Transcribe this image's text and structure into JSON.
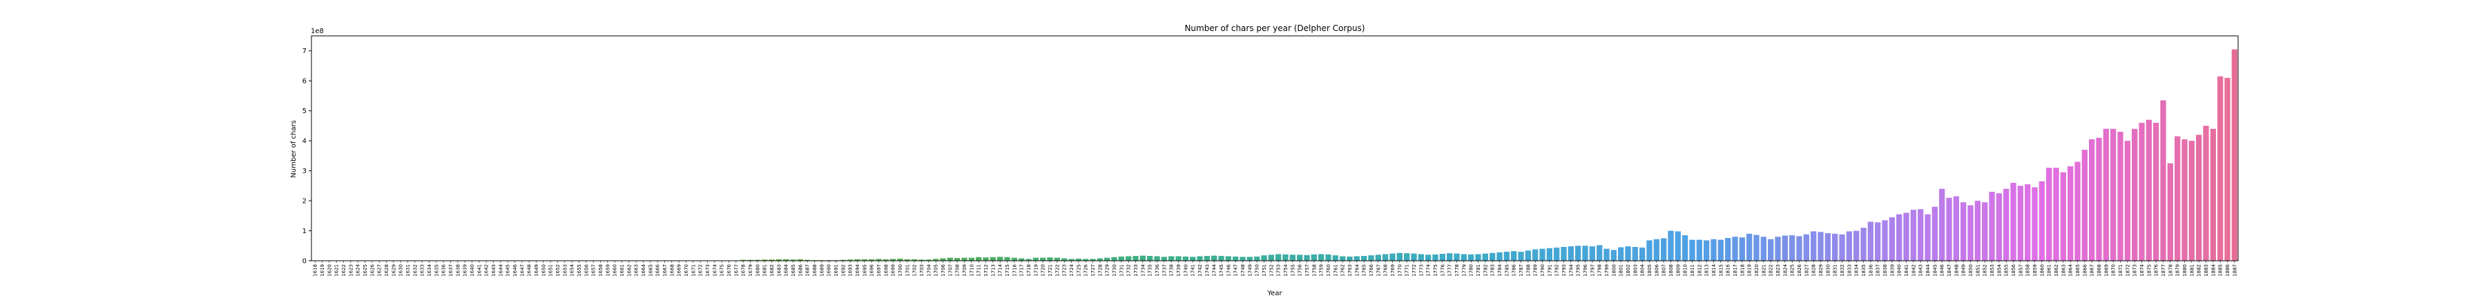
{
  "chart_data": {
    "type": "bar",
    "title": "Number of chars per year (Delpher Corpus)",
    "xlabel": "Year",
    "ylabel": "Number of chars",
    "offset_text": "1e8",
    "ylim": [
      0,
      7.5
    ],
    "yticks": [
      0,
      1,
      2,
      3,
      4,
      5,
      6,
      7
    ],
    "x_start": 1618,
    "x_end": 1876,
    "values": [
      0.002,
      0.002,
      0.002,
      0.002,
      0.002,
      0.002,
      0.002,
      0.002,
      0.002,
      0.002,
      0.002,
      0.002,
      0.002,
      0.002,
      0.002,
      0.002,
      0.002,
      0.002,
      0.002,
      0.002,
      0.002,
      0.002,
      0.002,
      0.002,
      0.002,
      0.002,
      0.002,
      0.002,
      0.002,
      0.002,
      0.002,
      0.002,
      0.002,
      0.002,
      0.002,
      0.002,
      0.002,
      0.002,
      0.002,
      0.002,
      0.002,
      0.002,
      0.002,
      0.002,
      0.002,
      0.002,
      0.002,
      0.002,
      0.002,
      0.002,
      0.003,
      0.003,
      0.003,
      0.003,
      0.003,
      0.003,
      0.003,
      0.003,
      0.003,
      0.003,
      0.03,
      0.03,
      0.03,
      0.04,
      0.04,
      0.05,
      0.05,
      0.04,
      0.05,
      0.03,
      0.02,
      0.02,
      0.02,
      0.02,
      0.03,
      0.04,
      0.05,
      0.05,
      0.05,
      0.06,
      0.05,
      0.06,
      0.07,
      0.05,
      0.05,
      0.04,
      0.04,
      0.06,
      0.08,
      0.1,
      0.09,
      0.1,
      0.1,
      0.12,
      0.11,
      0.12,
      0.13,
      0.12,
      0.1,
      0.08,
      0.06,
      0.1,
      0.1,
      0.11,
      0.1,
      0.08,
      0.06,
      0.07,
      0.06,
      0.06,
      0.08,
      0.1,
      0.12,
      0.14,
      0.15,
      0.16,
      0.17,
      0.16,
      0.15,
      0.13,
      0.15,
      0.15,
      0.14,
      0.13,
      0.15,
      0.16,
      0.17,
      0.16,
      0.15,
      0.14,
      0.13,
      0.13,
      0.14,
      0.18,
      0.2,
      0.22,
      0.21,
      0.2,
      0.2,
      0.19,
      0.21,
      0.22,
      0.21,
      0.18,
      0.15,
      0.14,
      0.15,
      0.16,
      0.18,
      0.2,
      0.22,
      0.24,
      0.26,
      0.25,
      0.24,
      0.22,
      0.2,
      0.21,
      0.23,
      0.25,
      0.24,
      0.22,
      0.21,
      0.22,
      0.24,
      0.26,
      0.28,
      0.3,
      0.32,
      0.3,
      0.34,
      0.38,
      0.4,
      0.42,
      0.44,
      0.46,
      0.48,
      0.5,
      0.5,
      0.48,
      0.52,
      0.4,
      0.36,
      0.45,
      0.48,
      0.46,
      0.44,
      0.68,
      0.72,
      0.75,
      1.0,
      0.98,
      0.85,
      0.7,
      0.7,
      0.68,
      0.72,
      0.7,
      0.76,
      0.8,
      0.78,
      0.9,
      0.86,
      0.8,
      0.72,
      0.8,
      0.84,
      0.85,
      0.82,
      0.88,
      0.98,
      0.96,
      0.92,
      0.9,
      0.88,
      0.98,
      1.0,
      1.1,
      1.3,
      1.28,
      1.35,
      1.45,
      1.55,
      1.6,
      1.7,
      1.72,
      1.55,
      1.8,
      2.4,
      2.1,
      2.15,
      1.95,
      1.85,
      2.0,
      1.95,
      2.3,
      2.25,
      2.4,
      2.6,
      2.5,
      2.55,
      2.45,
      2.65,
      3.1,
      3.1,
      2.95,
      3.15,
      3.3,
      3.7,
      4.05,
      4.1,
      4.4,
      4.4,
      4.3,
      4.0,
      4.4,
      4.6,
      4.7,
      4.6,
      5.35,
      3.25,
      4.15,
      4.05,
      4.0,
      4.2,
      4.5,
      4.4,
      6.15,
      6.1,
      7.05
    ]
  }
}
